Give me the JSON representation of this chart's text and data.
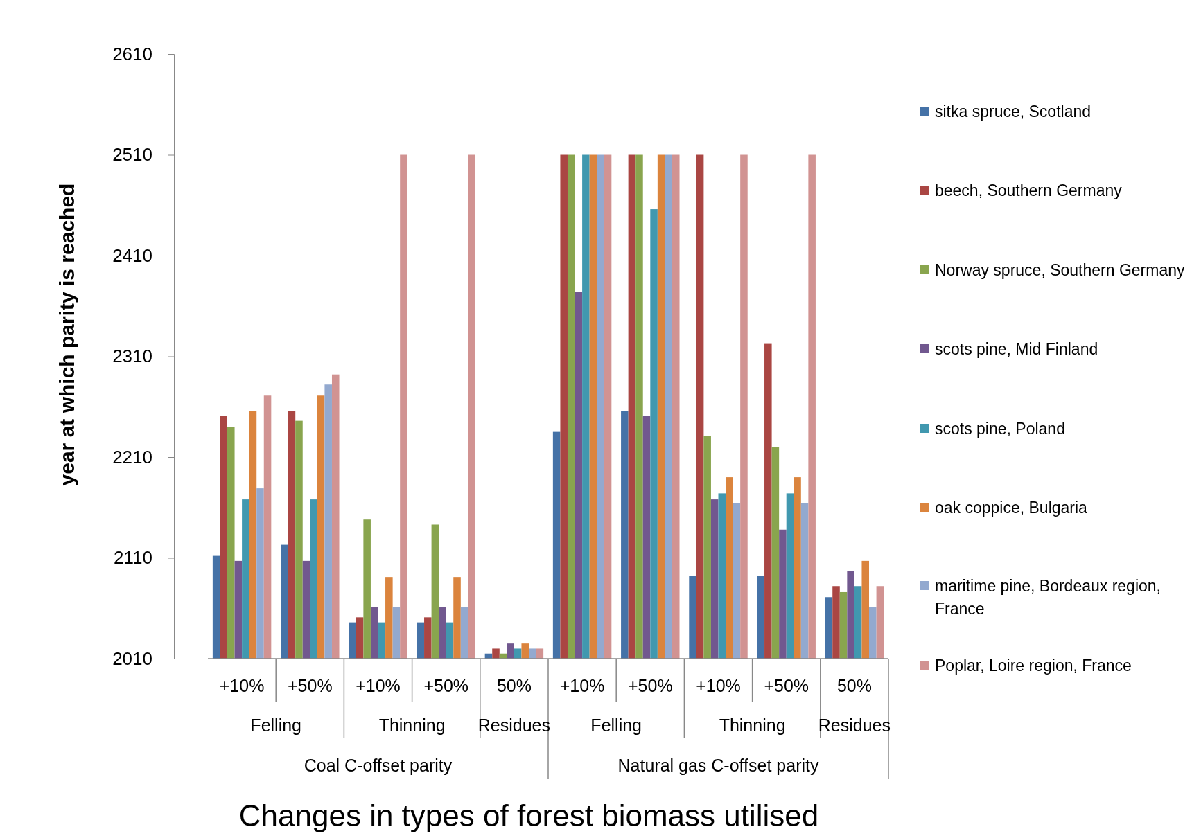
{
  "chart_data": {
    "type": "bar",
    "ylabel": "year at which parity is reached",
    "xlabel": "Changes in types of forest biomass utilised",
    "categories": [
      "+10%",
      "+50%",
      "+10%",
      "+50%",
      "50%",
      "+10%",
      "+50%",
      "+10%",
      "+50%",
      "50%"
    ],
    "annotations": [
      "Felling",
      "Thinning",
      "Residues",
      "Felling",
      "Thinning",
      "Residues",
      "Coal C-offset parity",
      "Natural gas C-offset parity"
    ],
    "ylim": [
      2010,
      2610
    ],
    "yticks": [
      2010,
      2110,
      2210,
      2310,
      2410,
      2510,
      2610
    ],
    "grid": false,
    "legend": "right",
    "series": [
      {
        "name": "sitka spruce, Scotland",
        "color": "#4572a7",
        "values": [
          2112,
          2123,
          2046,
          2046,
          2015,
          2235,
          2256,
          2092,
          2092,
          2071
        ]
      },
      {
        "name": "beech, Southern Germany",
        "color": "#aa4643",
        "values": [
          2251,
          2256,
          2051,
          2051,
          2020,
          2510,
          2510,
          2510,
          2323,
          2082
        ]
      },
      {
        "name": "Norway spruce, Southern Germany",
        "color": "#89a54e",
        "values": [
          2240,
          2246,
          2148,
          2143,
          2015,
          2510,
          2510,
          2231,
          2220,
          2076
        ]
      },
      {
        "name": "scots pine, Mid Finland",
        "color": "#71588f",
        "values": [
          2107,
          2107,
          2061,
          2061,
          2025,
          2374,
          2251,
          2168,
          2138,
          2097
        ]
      },
      {
        "name": "scots pine,  Poland",
        "color": "#4198af",
        "values": [
          2168,
          2168,
          2046,
          2046,
          2020,
          2510,
          2456,
          2174,
          2174,
          2082
        ]
      },
      {
        "name": "oak coppice, Bulgaria",
        "color": "#db843d",
        "values": [
          2256,
          2271,
          2091,
          2091,
          2025,
          2510,
          2510,
          2190,
          2190,
          2107
        ]
      },
      {
        "name": "maritime pine, Bordeaux region, France",
        "color": "#93a9cf",
        "values": [
          2179,
          2282,
          2061,
          2061,
          2020,
          2510,
          2510,
          2164,
          2164,
          2061
        ]
      },
      {
        "name": "Poplar, Loire region, France",
        "color": "#d19392",
        "values": [
          2271,
          2292,
          2510,
          2510,
          2020,
          2510,
          2510,
          2510,
          2510,
          2082
        ]
      }
    ]
  }
}
